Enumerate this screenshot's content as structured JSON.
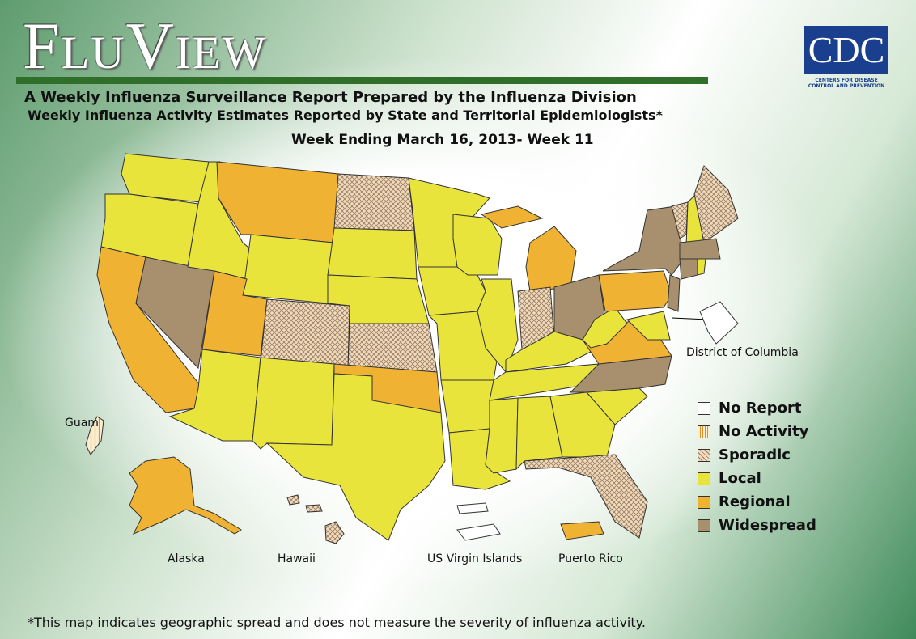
{
  "header": {
    "title": "FluView",
    "subtitle": "A Weekly Influenza Surveillance Report Prepared by the Influenza Division",
    "subtitle2": "Weekly Influenza Activity Estimates Reported by State and Territorial Epidemiologists*",
    "week": "Week Ending March 16, 2013- Week 11"
  },
  "logo": {
    "text": "CDC",
    "caption": "Centers for Disease Control and Prevention"
  },
  "map": {
    "labels": [
      "District of Columbia",
      "Guam",
      "Alaska",
      "Hawaii",
      "US Virgin Islands",
      "Puerto Rico"
    ]
  },
  "legend": {
    "items": [
      "No Report",
      "No Activity",
      "Sporadic",
      "Local",
      "Regional",
      "Widespread"
    ]
  },
  "footnote": "*This map indicates geographic spread and does not measure the severity of influenza activity."
}
